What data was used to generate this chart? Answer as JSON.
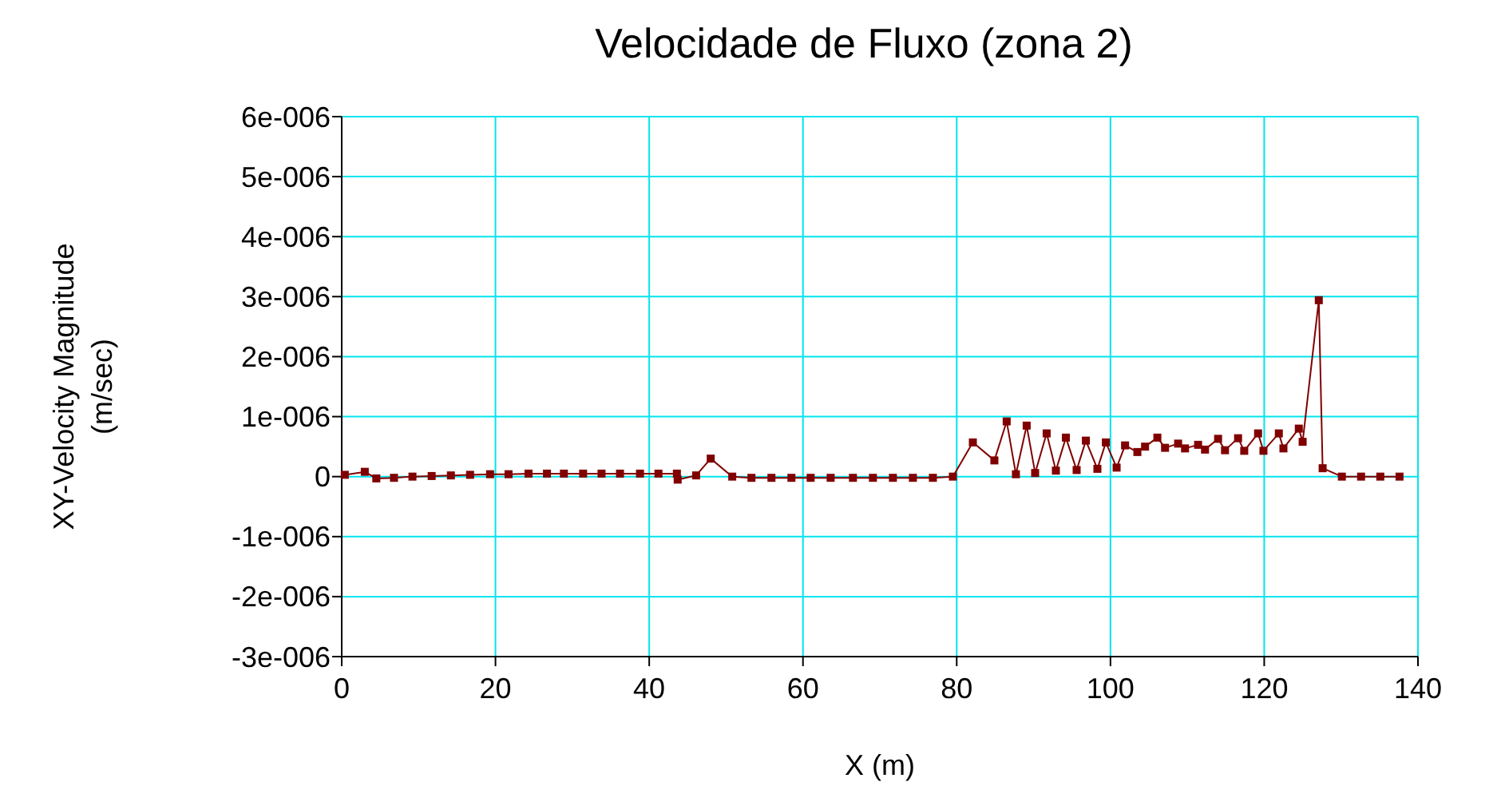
{
  "chart_data": {
    "type": "line",
    "title": "Velocidade de Fluxo (zona 2)",
    "xlabel": "X (m)",
    "ylabel": "XY-Velocity Magnitude\n(m/sec)",
    "xlim": [
      0,
      140
    ],
    "xticks": [
      0,
      20,
      40,
      60,
      80,
      100,
      120,
      140
    ],
    "ylim": [
      -3e-06,
      6e-06
    ],
    "yticks": [
      {
        "value": -3e-06,
        "label": "-3e-006"
      },
      {
        "value": -2e-06,
        "label": "-2e-006"
      },
      {
        "value": -1e-06,
        "label": "-1e-006"
      },
      {
        "value": 0,
        "label": "0"
      },
      {
        "value": 1e-06,
        "label": "1e-006"
      },
      {
        "value": 2e-06,
        "label": "2e-006"
      },
      {
        "value": 3e-06,
        "label": "3e-006"
      },
      {
        "value": 4e-06,
        "label": "4e-006"
      },
      {
        "value": 5e-06,
        "label": "5e-006"
      },
      {
        "value": 6e-06,
        "label": "6e-006"
      }
    ],
    "grid": true,
    "marker": "square",
    "line_style": "solid",
    "series": [
      {
        "color": "#800000",
        "x": [
          0.4,
          3,
          4.5,
          6.8,
          9.2,
          11.7,
          14.2,
          16.7,
          19.3,
          21.7,
          24.3,
          26.7,
          28.9,
          31.4,
          33.8,
          36.2,
          38.8,
          41.2,
          43.6,
          43.7,
          46.1,
          48,
          50.8,
          53.3,
          55.9,
          58.5,
          61,
          63.6,
          66.5,
          69.1,
          71.7,
          74.3,
          76.9,
          79.5,
          82.1,
          84.9,
          86.5,
          87.7,
          89.1,
          90.2,
          91.7,
          92.9,
          94.2,
          95.6,
          96.8,
          98.3,
          99.4,
          100.8,
          101.9,
          103.5,
          104.5,
          106.1,
          107.1,
          108.8,
          109.7,
          111.4,
          112.3,
          114,
          114.9,
          116.6,
          117.4,
          119.2,
          119.9,
          121.9,
          122.5,
          124.5,
          125,
          127.1,
          127.6,
          130.1,
          132.6,
          135.1,
          137.6
        ],
        "values": [
          3e-08,
          8e-08,
          -3e-08,
          -2e-08,
          0,
          1e-08,
          2e-08,
          3e-08,
          4e-08,
          4e-08,
          5e-08,
          5e-08,
          5e-08,
          5e-08,
          5e-08,
          5e-08,
          5e-08,
          5e-08,
          5e-08,
          -5e-08,
          2e-08,
          3e-07,
          0,
          -2e-08,
          -2e-08,
          -2e-08,
          -2e-08,
          -2e-08,
          -2e-08,
          -2e-08,
          -2e-08,
          -2e-08,
          -2e-08,
          0,
          5.7e-07,
          2.7e-07,
          9.2e-07,
          4e-08,
          8.5e-07,
          6e-08,
          7.2e-07,
          1e-07,
          6.5e-07,
          1.1e-07,
          6e-07,
          1.3e-07,
          5.7e-07,
          1.5e-07,
          5.2e-07,
          4.1e-07,
          5e-07,
          6.5e-07,
          4.8e-07,
          5.5e-07,
          4.7e-07,
          5.3e-07,
          4.5e-07,
          6.3e-07,
          4.4e-07,
          6.4e-07,
          4.3e-07,
          7.2e-07,
          4.3e-07,
          7.2e-07,
          4.7e-07,
          8e-07,
          5.8e-07,
          2.94e-06,
          1.4e-07,
          0,
          0,
          0,
          0
        ]
      }
    ]
  }
}
